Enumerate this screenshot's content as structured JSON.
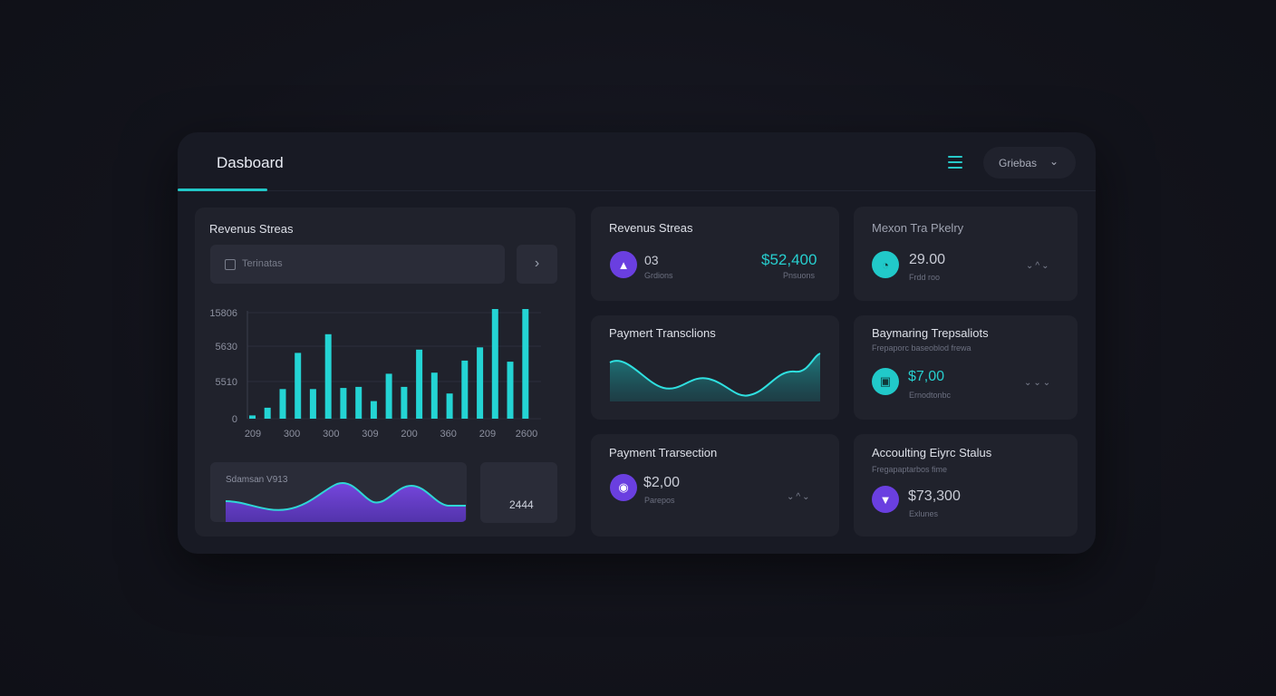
{
  "header": {
    "title": "Dasboard",
    "select_value": "Griebas"
  },
  "main_card": {
    "title": "Revenus Streas",
    "search_placeholder": "Terinatas",
    "y_ticks": [
      "15806",
      "5630",
      "5510",
      "0"
    ],
    "x_ticks": [
      "209",
      "300",
      "300",
      "309",
      "200",
      "360",
      "209",
      "2600"
    ],
    "bars": [
      0.03,
      0.1,
      0.27,
      0.6,
      0.27,
      0.77,
      0.28,
      0.29,
      0.16,
      0.41,
      0.29,
      0.63,
      0.42,
      0.23,
      0.53,
      0.65,
      1.0,
      0.52,
      1.0
    ],
    "mini_chart_label": "Sdamsan V913",
    "mini_value": "2444"
  },
  "card_revenue": {
    "title": "Revenus Streas",
    "value_small": "03",
    "sub_small": "Grdions",
    "value_big": "$52,400",
    "sub_big": "Pnsuons"
  },
  "card_mexon": {
    "title": "Mexon Tra Pkelry",
    "value": "29.00",
    "sub": "Frdd roo"
  },
  "card_payment1": {
    "title": "Paymert Transclions"
  },
  "card_paymaring": {
    "title": "Baymaring Trepsaliots",
    "subtitle": "Frepaporc baseoblod frewa",
    "value": "$7,00",
    "sub": "Ernodtonbc"
  },
  "card_payment2": {
    "title": "Payment Trarsection",
    "value": "$2,00",
    "sub": "Parepos"
  },
  "card_accounting": {
    "title": "Accoulting Eiyrc Stalus",
    "subtitle": "Fregapaptarbos fime",
    "value": "$73,300",
    "sub": "Exlunes"
  },
  "colors": {
    "accent_cyan": "#21c9c9",
    "accent_purple": "#6a3fe0",
    "panel": "#181a24",
    "card": "#20222c"
  },
  "icons": {
    "menu": "hamburger-icon",
    "chevron": "chevron-down-icon",
    "arrow": "chevron-right-icon"
  }
}
